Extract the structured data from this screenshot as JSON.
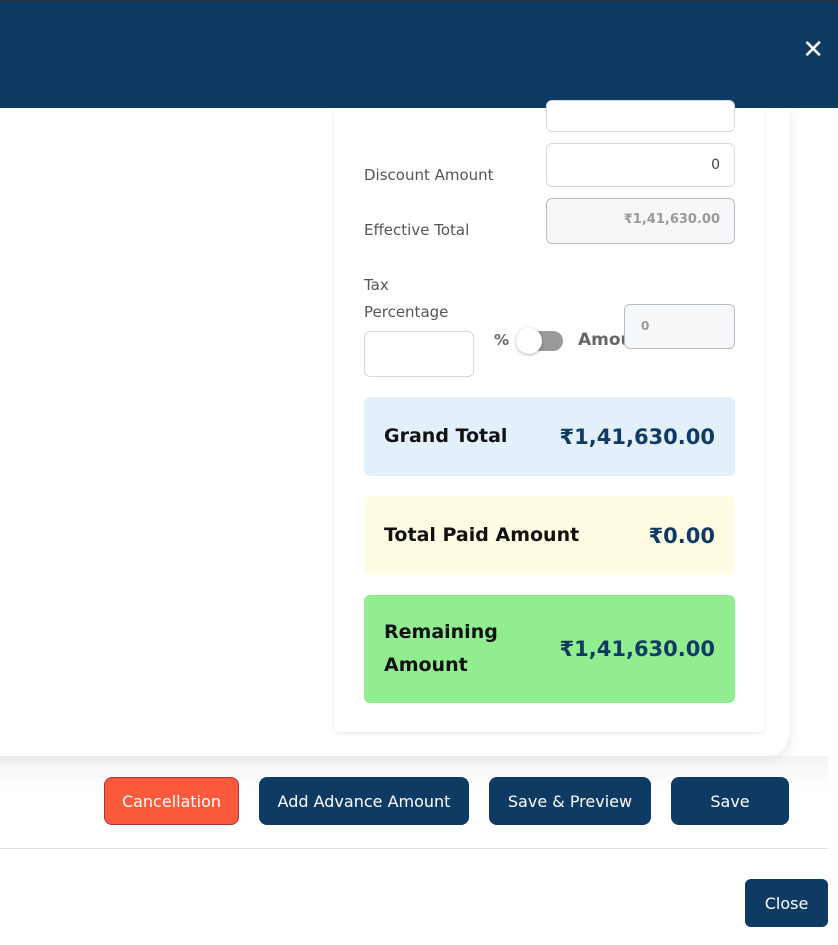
{
  "header": {
    "close_icon": "close-icon"
  },
  "form": {
    "discount_label": "Discount Amount",
    "discount_value": "0",
    "effective_total_label": "Effective Total",
    "effective_total_value": "₹1,41,630.00",
    "tax_label_1": "Tax",
    "tax_label_2": "Percentage",
    "tax_percentage_value": "",
    "percent_symbol": "%",
    "amount_toggle_label": "Amount",
    "tax_amount_value": "0",
    "toggle_on": false
  },
  "summary": {
    "grand_total_label": "Grand Total",
    "grand_total_value": "₹1,41,630.00",
    "grand_total_color": "#e3f0fb",
    "paid_label": "Total Paid Amount",
    "paid_value": "₹0.00",
    "paid_color": "#fefde3",
    "remaining_label_1": "Remaining",
    "remaining_label_2": "Amount",
    "remaining_value": "₹1,41,630.00",
    "remaining_color": "#90ee90"
  },
  "actions": {
    "cancellation": "Cancellation",
    "add_advance": "Add Advance Amount",
    "save_preview": "Save & Preview",
    "save": "Save",
    "close": "Close",
    "cancel_color": "#fc5a3c",
    "primary_color": "#0f3a63"
  }
}
